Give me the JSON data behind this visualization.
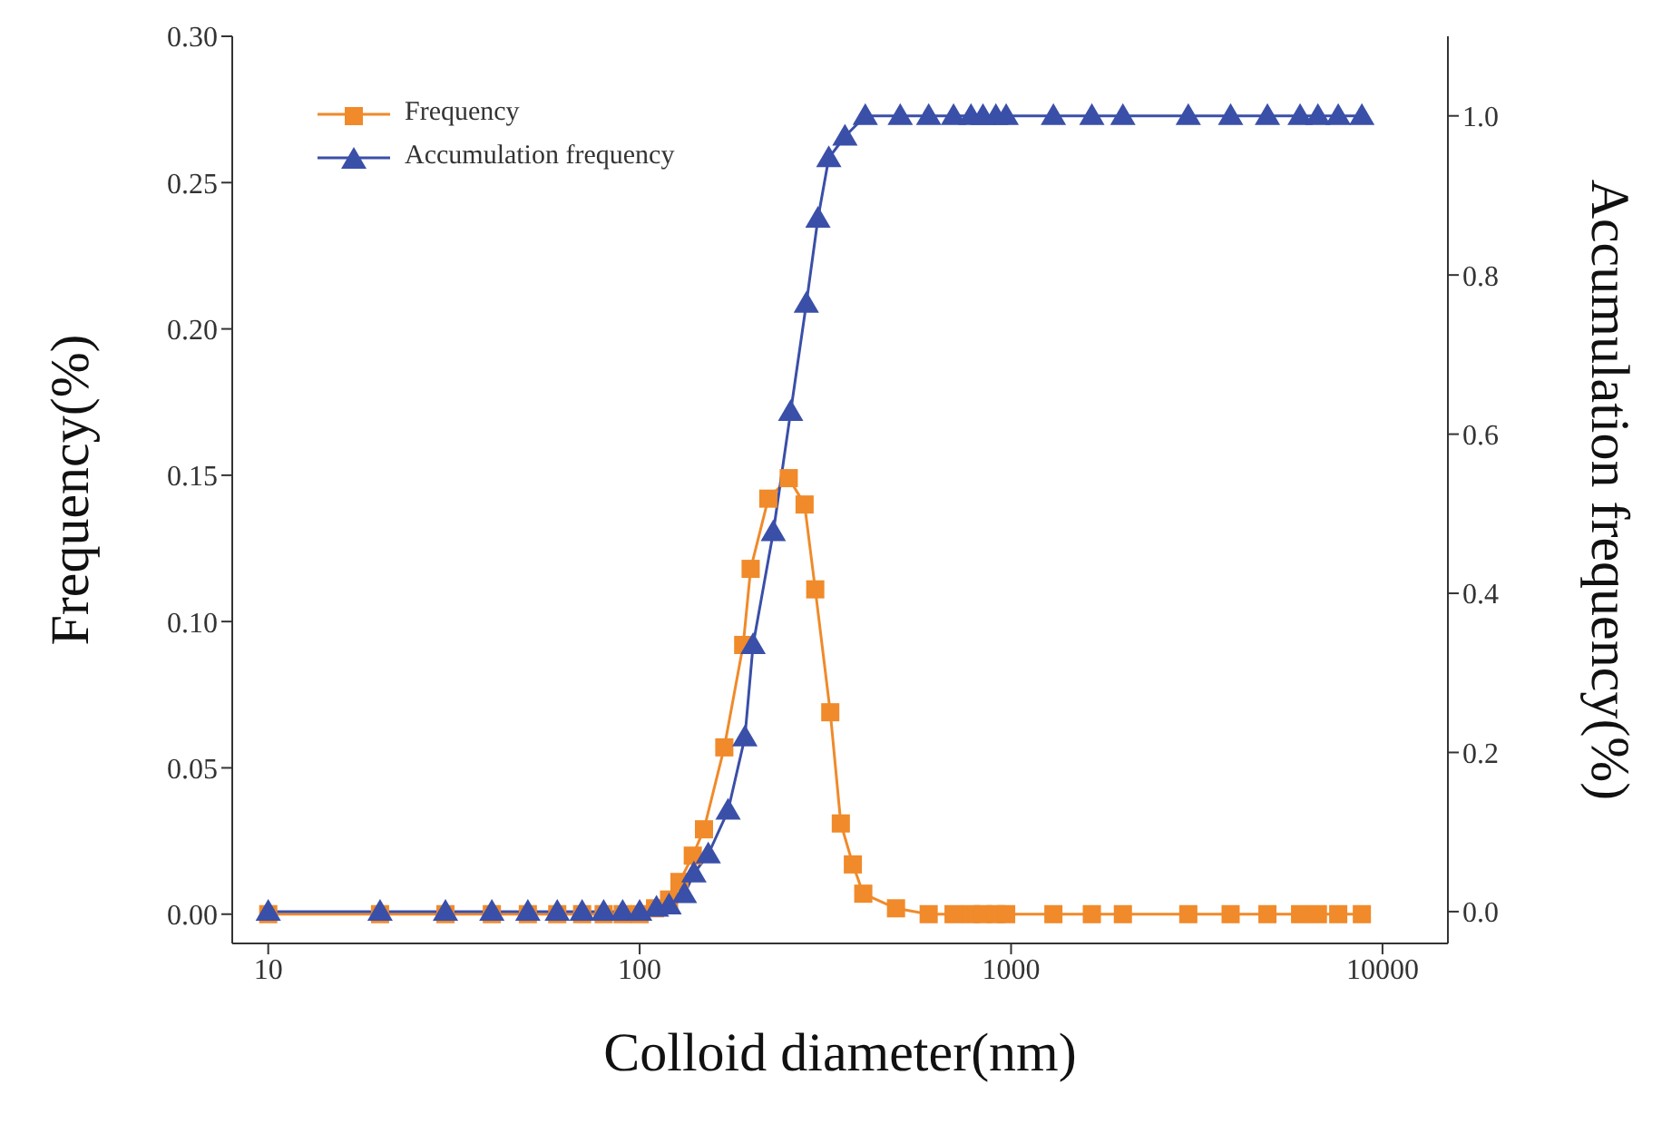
{
  "chart_data": {
    "type": "line",
    "xlabel": "Colloid diameter(nm)",
    "ylabel": "Frequency(%)",
    "y2label": "Accumulation frequency(%)",
    "log": "x",
    "xlim": [
      8,
      15000
    ],
    "xticks": [
      10,
      100,
      1000,
      10000
    ],
    "ylim": [
      -0.01,
      0.3
    ],
    "yticks": [
      {
        "value": 0,
        "label": "0.00"
      },
      0.05,
      {
        "value": 0.1,
        "label": "0.10"
      },
      0.15,
      {
        "value": 0.2,
        "label": "0.20"
      },
      0.25,
      {
        "value": 0.3,
        "label": "0.30"
      }
    ],
    "y2lim": [
      -0.04,
      1.1
    ],
    "y2ticks": [
      {
        "value": 0,
        "label": "0.0"
      },
      0.2,
      0.4,
      0.6,
      0.8,
      {
        "value": 1,
        "label": "1.0"
      }
    ],
    "legend": "top left",
    "line_style": "solid",
    "series": [
      {
        "name": "Frequency",
        "color": "#f08a2a",
        "marker": "square",
        "x": [
          10,
          20,
          30,
          40,
          50,
          60,
          70,
          80,
          90,
          100,
          110,
          120,
          128,
          139,
          149,
          169,
          190,
          199,
          222,
          252,
          278,
          297,
          326,
          348,
          375,
          400,
          490,
          600,
          700,
          780,
          840,
          910,
          970,
          1300,
          1650,
          2000,
          3000,
          3900,
          4900,
          6000,
          6700,
          7600,
          8800
        ],
        "values": [
          0,
          0,
          0,
          0,
          0,
          0,
          0,
          0,
          0,
          0,
          0.002,
          0.005,
          0.011,
          0.02,
          0.029,
          0.057,
          0.092,
          0.118,
          0.142,
          0.149,
          0.14,
          0.111,
          0.069,
          0.031,
          0.017,
          0.007,
          0.002,
          0,
          0,
          0,
          0,
          0,
          0,
          0,
          0,
          0,
          0,
          0,
          0,
          0,
          0,
          0,
          0
        ]
      },
      {
        "name": "Accumulation frequency",
        "color": "#3a4fa8",
        "marker": "triangle",
        "axis": "y2",
        "x": [
          10,
          20,
          30,
          40,
          50,
          60,
          70,
          80,
          90,
          100,
          111,
          120,
          132,
          140,
          153,
          173,
          192,
          202,
          229,
          255,
          281,
          302,
          323,
          357,
          405,
          503,
          600,
          700,
          780,
          840,
          910,
          970,
          1300,
          1650,
          2000,
          3000,
          3900,
          4900,
          6000,
          6700,
          7600,
          8800
        ],
        "values": [
          0,
          0,
          0,
          0,
          0,
          0,
          0,
          0,
          0,
          0,
          0.005,
          0.008,
          0.022,
          0.048,
          0.072,
          0.127,
          0.219,
          0.335,
          0.477,
          0.628,
          0.764,
          0.871,
          0.947,
          0.974,
          1,
          1,
          1,
          1,
          1,
          1,
          1,
          1,
          1,
          1,
          1,
          1,
          1,
          1,
          1,
          1,
          1,
          1
        ]
      }
    ]
  }
}
